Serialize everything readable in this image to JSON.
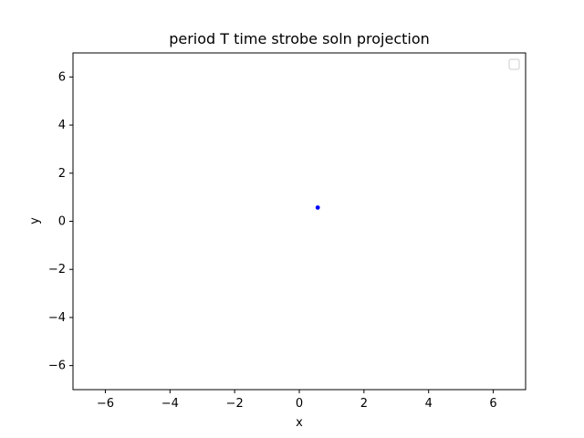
{
  "chart_data": {
    "type": "scatter",
    "title": "period T time strobe soln projection",
    "xlabel": "x",
    "ylabel": "y",
    "xlim": [
      -7,
      7
    ],
    "ylim": [
      -7,
      7
    ],
    "x_ticks": [
      -6,
      -4,
      -2,
      0,
      2,
      4,
      6
    ],
    "y_ticks": [
      -6,
      -4,
      -2,
      0,
      2,
      4,
      6
    ],
    "x_tick_labels": [
      "−6",
      "−4",
      "−2",
      "0",
      "2",
      "4",
      "6"
    ],
    "y_tick_labels": [
      "−6",
      "−4",
      "−2",
      "0",
      "2",
      "4",
      "6"
    ],
    "grid": false,
    "legend": {
      "placement": "top-right",
      "entries": []
    },
    "series": [
      {
        "color": "#0000ff",
        "marker": "dot",
        "points": [
          {
            "x": 0.57,
            "y": 0.57
          }
        ]
      }
    ]
  }
}
